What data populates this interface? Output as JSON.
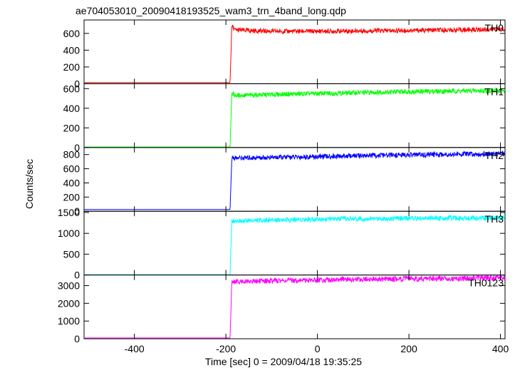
{
  "chart_data": {
    "type": "line",
    "title": "ae704053010_20090418193525_wam3_trn_4band_long.qdp",
    "xlabel": "Time [sec] 0 = 2009/04/18 19:35:25",
    "ylabel": "Counts/sec",
    "xlim": [
      -510,
      410
    ],
    "xticks": [
      -400,
      -200,
      0,
      200,
      400
    ],
    "step_time": -190,
    "panels": [
      {
        "label": "TH0",
        "color": "#ff0000",
        "ylim": [
          0,
          760
        ],
        "yticks": [
          0,
          200,
          400,
          600
        ],
        "pre_level": 14,
        "x": [
          -510,
          -191,
          -187,
          -180,
          -100,
          0,
          100,
          200,
          300,
          400
        ],
        "y": [
          14,
          14,
          690,
          640,
          625,
          625,
          630,
          635,
          640,
          650
        ]
      },
      {
        "label": "TH1",
        "color": "#00ff00",
        "ylim": [
          0,
          650
        ],
        "yticks": [
          0,
          200,
          400,
          600
        ],
        "pre_level": 5,
        "x": [
          -510,
          -191,
          -187,
          -180,
          -100,
          0,
          100,
          200,
          300,
          400
        ],
        "y": [
          5,
          5,
          560,
          530,
          540,
          550,
          560,
          570,
          575,
          580
        ]
      },
      {
        "label": "TH2",
        "color": "#0000ff",
        "ylim": [
          0,
          900
        ],
        "yticks": [
          0,
          200,
          400,
          600,
          800
        ],
        "pre_level": 25,
        "x": [
          -510,
          -191,
          -187,
          -180,
          -100,
          0,
          100,
          200,
          300,
          400
        ],
        "y": [
          25,
          25,
          760,
          750,
          760,
          770,
          785,
          795,
          805,
          810
        ]
      },
      {
        "label": "TH3",
        "color": "#00ffff",
        "ylim": [
          0,
          1530
        ],
        "yticks": [
          0,
          500,
          1000,
          1500
        ],
        "pre_level": 8,
        "x": [
          -510,
          -191,
          -187,
          -180,
          -100,
          0,
          100,
          200,
          300,
          400
        ],
        "y": [
          8,
          8,
          1300,
          1300,
          1320,
          1340,
          1350,
          1360,
          1365,
          1370
        ]
      },
      {
        "label": "TH0123",
        "color": "#ff00ff",
        "ylim": [
          0,
          3600
        ],
        "yticks": [
          0,
          1000,
          2000,
          3000
        ],
        "pre_level": 45,
        "x": [
          -510,
          -191,
          -187,
          -180,
          -100,
          0,
          100,
          200,
          300,
          400
        ],
        "y": [
          45,
          45,
          3250,
          3230,
          3280,
          3320,
          3360,
          3390,
          3410,
          3440
        ]
      }
    ]
  }
}
